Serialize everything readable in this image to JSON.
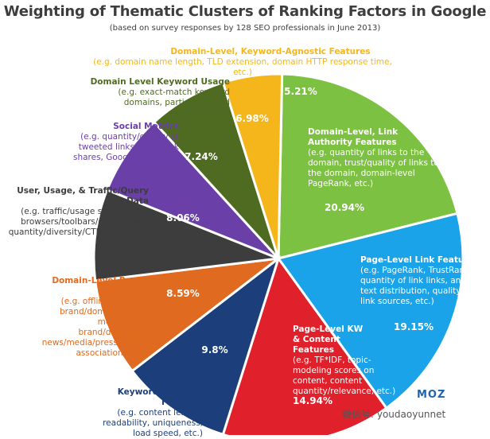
{
  "title": "Weighting of Thematic Clusters of Ranking Factors in Google",
  "subtitle": "(based on survey responses by 128 SEO professionals in June 2013)",
  "chart_data": {
    "type": "pie",
    "slices": [
      {
        "name": "Domain-Level, Link Authority Features",
        "desc": "(e.g. quantity of links to the domain, trust/quality of links to the domain, domain-level PageRank, etc.)",
        "value": 20.94,
        "label": "20.94%",
        "color": "#7dc142"
      },
      {
        "name": "Page-Level Link Features",
        "desc": "(e.g. PageRank, TrustRank, quantity of link links, anchor text distribution, quality of link sources, etc.)",
        "value": 19.15,
        "label": "19.15%",
        "color": "#1aa3e8"
      },
      {
        "name": "Page-Level KW & Content Features",
        "desc": "(e.g. TF*IDF, topic-modeling scores on content, content quantity/relevance, etc.)",
        "value": 14.94,
        "label": "14.94%",
        "color": "#e0202a"
      },
      {
        "name": "Page-Level, Keyword-Agnostic Features",
        "desc": "(e.g. content length, readability, uniqueness, load speed, etc.)",
        "value": 9.8,
        "label": "9.8%",
        "color": "#1c3f7c"
      },
      {
        "name": "Domain-Level Brand Features",
        "desc": "(e.g. offline usage of brand/domain name, mentions of brand/domain in news/media/press, entity association, etc.)",
        "value": 8.59,
        "label": "8.59%",
        "color": "#e06a1f"
      },
      {
        "name": "User, Usage, & Traffic/Query Data",
        "desc": "(e.g. traffic/usage signals from browsers/toolbars/clickstream, quantity/diversity/CTR of queries, etc.)",
        "value": 8.06,
        "label": "8.06%",
        "color": "#3d3d3d"
      },
      {
        "name": "Social Metrics",
        "desc": "(e.g. quantity/quality of tweeted links, Facebook shares, Google +1s, etc.)",
        "value": 7.24,
        "label": "7.24%",
        "color": "#6a3fa8"
      },
      {
        "name": "Domain Level Keyword Usage",
        "desc": "(e.g. exact-match keyword domains, partial-keyword matches, etc.)",
        "value": 6.98,
        "label": "6.98%",
        "color": "#4f6b22"
      },
      {
        "name": "Domain-Level, Keyword-Agnostic Features",
        "desc": "(e.g. domain name length, TLD extension, domain HTTP response time, etc.)",
        "value": 5.21,
        "label": "5.21%",
        "color": "#f5b61c"
      }
    ]
  },
  "brand": "MOZ",
  "watermark": "微信号: youdaoyunnet"
}
